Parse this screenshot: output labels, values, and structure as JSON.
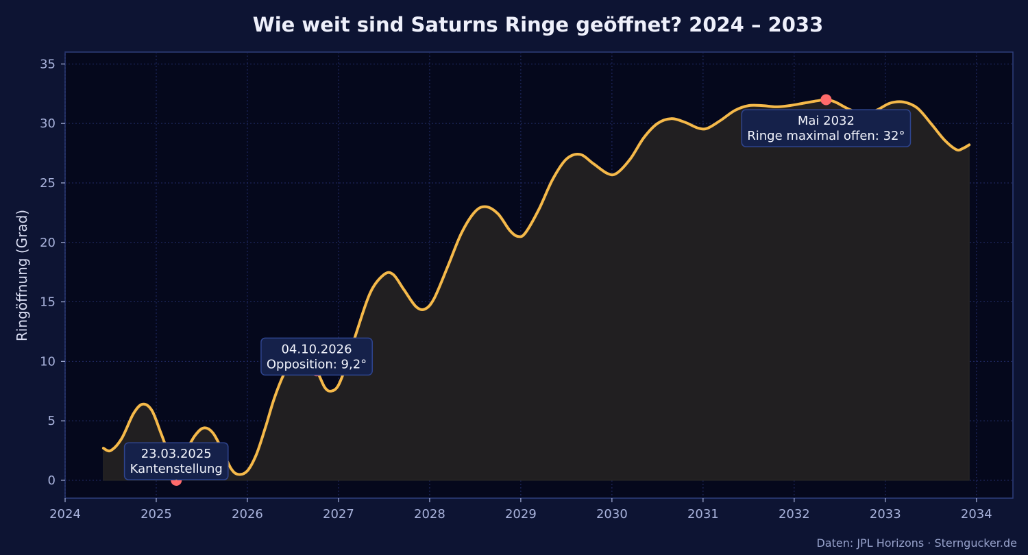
{
  "chart_data": {
    "type": "area",
    "title": "Wie weit sind Saturns Ringe geöffnet? 2024 – 2033",
    "xlabel": "",
    "ylabel": "Ringöffnung (Grad)",
    "xlim": [
      2024.0,
      2034.4
    ],
    "ylim": [
      -1.5,
      36
    ],
    "x_ticks": [
      2024,
      2025,
      2026,
      2027,
      2028,
      2029,
      2030,
      2031,
      2032,
      2033,
      2034
    ],
    "y_ticks": [
      0,
      5,
      10,
      15,
      20,
      25,
      30,
      35
    ],
    "grid": true,
    "series": [
      {
        "color": "#f5b94a",
        "fill_color": "#211f21",
        "points": [
          [
            2024.42,
            2.7
          ],
          [
            2024.5,
            2.5
          ],
          [
            2024.62,
            3.5
          ],
          [
            2024.75,
            5.6
          ],
          [
            2024.85,
            6.4
          ],
          [
            2024.95,
            5.9
          ],
          [
            2025.05,
            4.0
          ],
          [
            2025.15,
            2.0
          ],
          [
            2025.22,
            1.3
          ],
          [
            2025.3,
            2.1
          ],
          [
            2025.42,
            3.7
          ],
          [
            2025.52,
            4.4
          ],
          [
            2025.62,
            4.0
          ],
          [
            2025.72,
            2.6
          ],
          [
            2025.82,
            1.0
          ],
          [
            2025.9,
            0.5
          ],
          [
            2026.0,
            0.8
          ],
          [
            2026.1,
            2.2
          ],
          [
            2026.2,
            4.5
          ],
          [
            2026.3,
            7.0
          ],
          [
            2026.42,
            9.2
          ],
          [
            2026.55,
            10.4
          ],
          [
            2026.65,
            10.1
          ],
          [
            2026.76,
            9.2
          ],
          [
            2026.85,
            7.8
          ],
          [
            2026.92,
            7.5
          ],
          [
            2027.0,
            8.0
          ],
          [
            2027.1,
            10.0
          ],
          [
            2027.2,
            12.5
          ],
          [
            2027.35,
            15.8
          ],
          [
            2027.5,
            17.3
          ],
          [
            2027.6,
            17.3
          ],
          [
            2027.72,
            16.0
          ],
          [
            2027.85,
            14.6
          ],
          [
            2027.95,
            14.4
          ],
          [
            2028.05,
            15.3
          ],
          [
            2028.2,
            18.0
          ],
          [
            2028.35,
            20.8
          ],
          [
            2028.5,
            22.6
          ],
          [
            2028.62,
            23.0
          ],
          [
            2028.75,
            22.4
          ],
          [
            2028.88,
            21.0
          ],
          [
            2028.97,
            20.5
          ],
          [
            2029.05,
            20.8
          ],
          [
            2029.2,
            22.8
          ],
          [
            2029.35,
            25.3
          ],
          [
            2029.5,
            27.0
          ],
          [
            2029.65,
            27.4
          ],
          [
            2029.8,
            26.6
          ],
          [
            2029.95,
            25.8
          ],
          [
            2030.05,
            25.8
          ],
          [
            2030.2,
            27.0
          ],
          [
            2030.35,
            28.8
          ],
          [
            2030.5,
            30.0
          ],
          [
            2030.65,
            30.4
          ],
          [
            2030.8,
            30.1
          ],
          [
            2030.95,
            29.6
          ],
          [
            2031.05,
            29.6
          ],
          [
            2031.2,
            30.3
          ],
          [
            2031.35,
            31.1
          ],
          [
            2031.5,
            31.5
          ],
          [
            2031.65,
            31.5
          ],
          [
            2031.8,
            31.4
          ],
          [
            2031.95,
            31.5
          ],
          [
            2032.1,
            31.7
          ],
          [
            2032.25,
            31.9
          ],
          [
            2032.35,
            32.0
          ],
          [
            2032.45,
            31.8
          ],
          [
            2032.6,
            31.2
          ],
          [
            2032.75,
            30.8
          ],
          [
            2032.9,
            31.1
          ],
          [
            2033.05,
            31.7
          ],
          [
            2033.2,
            31.8
          ],
          [
            2033.35,
            31.3
          ],
          [
            2033.5,
            30.0
          ],
          [
            2033.65,
            28.6
          ],
          [
            2033.78,
            27.8
          ],
          [
            2033.85,
            27.9
          ],
          [
            2033.92,
            28.2
          ]
        ]
      }
    ],
    "highlights": [
      {
        "x": 2025.22,
        "y": 0
      },
      {
        "x": 2026.76,
        "y": 9.2
      },
      {
        "x": 2032.35,
        "y": 32
      }
    ],
    "annotations": [
      {
        "line1": "23.03.2025",
        "line2": "Kantenstellung",
        "x": 2025.22,
        "y": 1.6,
        "pointer_to": [
          2025.22,
          0
        ]
      },
      {
        "line1": "04.10.2026",
        "line2": "Opposition: 9,2°",
        "x": 2026.76,
        "y": 10.4
      },
      {
        "line1": "Mai 2032",
        "line2": "Ringe maximal offen: 32°",
        "x": 2032.35,
        "y": 29.6
      }
    ],
    "source": "Daten: JPL Horizons · Sterngucker.de"
  }
}
